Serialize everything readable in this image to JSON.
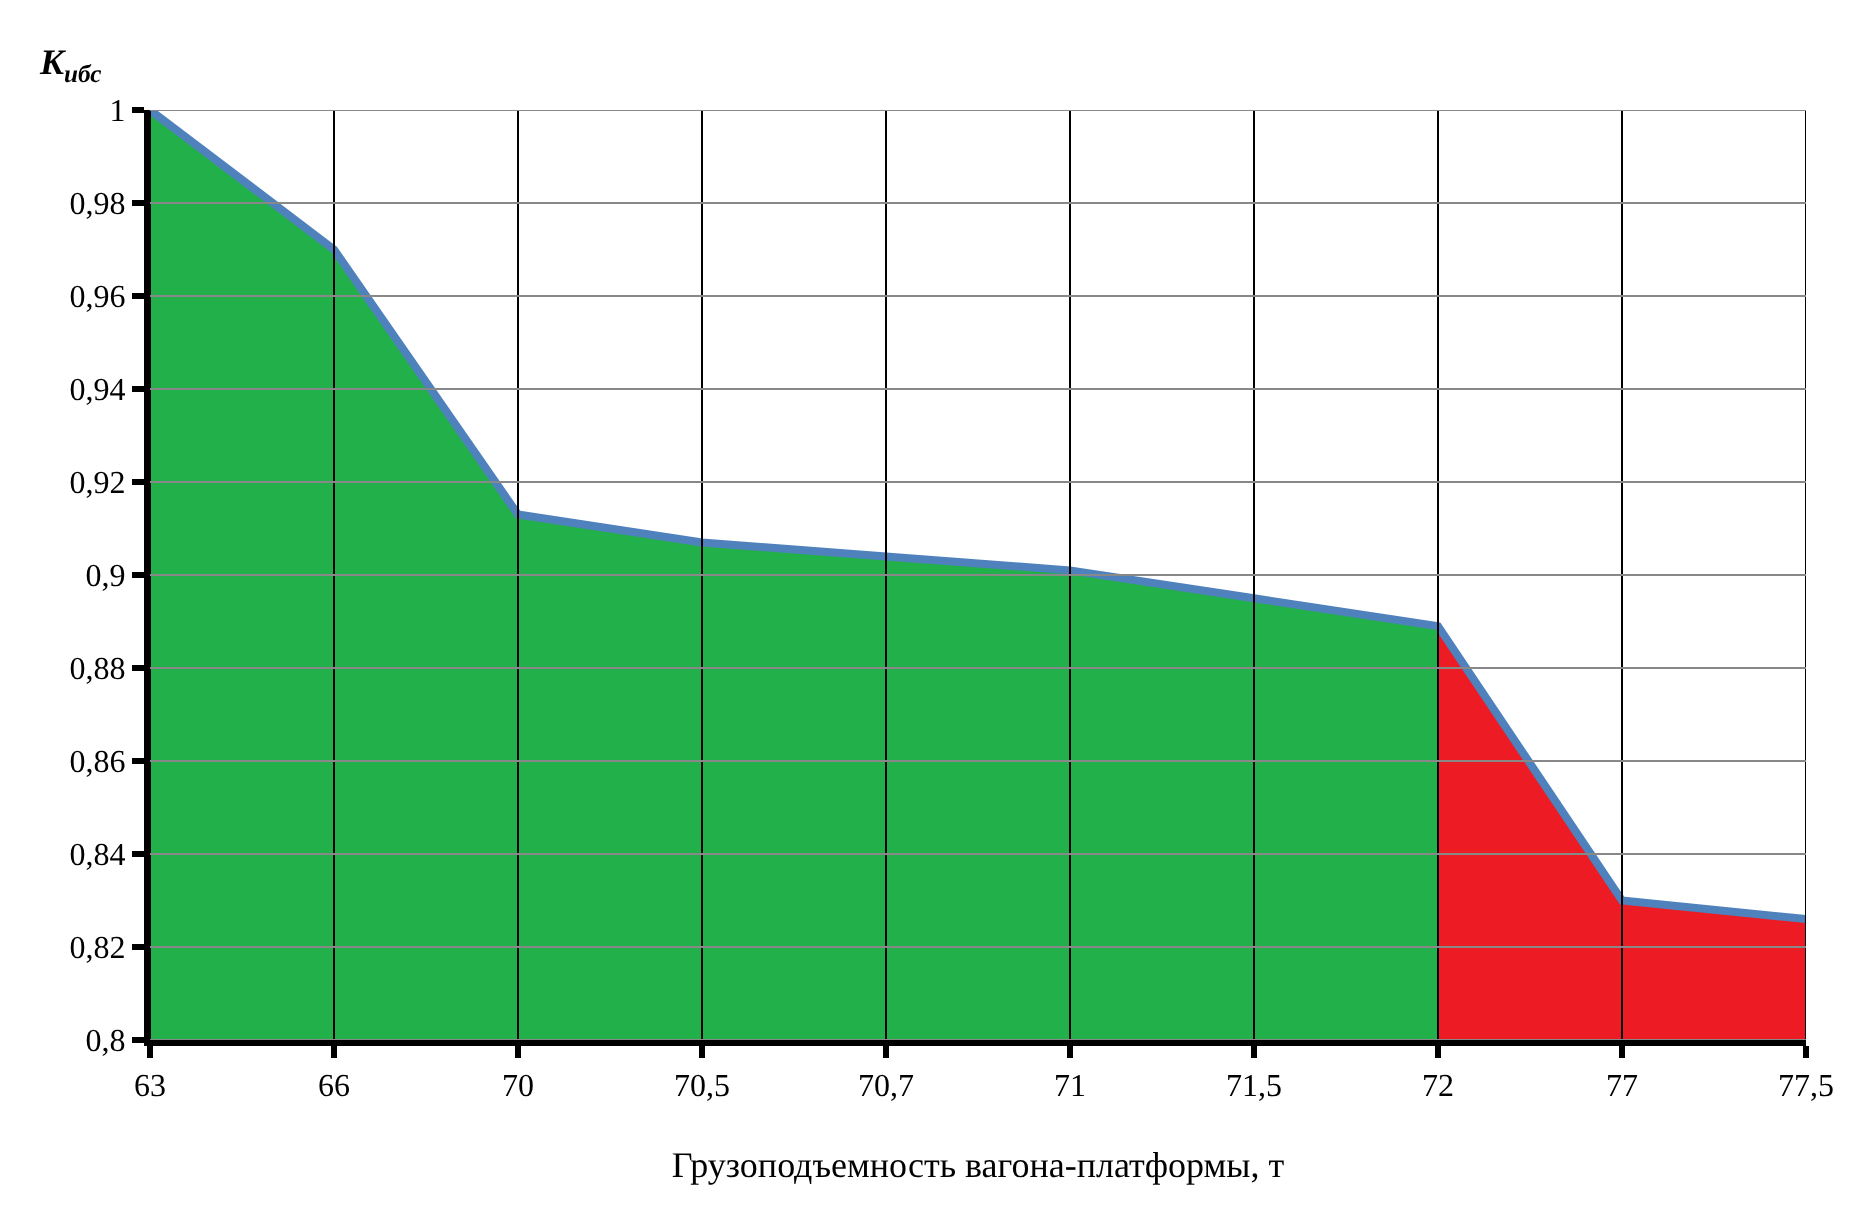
{
  "chart_data": {
    "type": "area",
    "ylabel": "K$_{ибс}$",
    "xlabel": "Грузоподъемность вагона-платформы, т",
    "categories": [
      "63",
      "66",
      "70",
      "70,5",
      "70,7",
      "71",
      "71,5",
      "72",
      "77",
      "77,5"
    ],
    "series": [
      {
        "color": "#22b04b",
        "values": [
          1.0,
          0.97,
          0.913,
          0.907,
          0.904,
          0.901,
          0.895,
          0.889,
          null,
          null
        ]
      },
      {
        "color": "#ed1c24",
        "values": [
          null,
          null,
          null,
          null,
          null,
          null,
          null,
          0.889,
          0.83,
          0.826
        ]
      },
      {
        "type": "line",
        "color": "#4f81bd",
        "values": [
          1.0,
          0.97,
          0.913,
          0.907,
          0.904,
          0.901,
          0.895,
          0.889,
          0.83,
          0.826
        ]
      }
    ],
    "ylim": [
      0.8,
      1.0
    ],
    "yticks": [
      {
        "value": 0.8,
        "label": "0,8"
      },
      {
        "value": 0.82,
        "label": "0,82"
      },
      {
        "value": 0.84,
        "label": "0,84"
      },
      {
        "value": 0.86,
        "label": "0,86"
      },
      {
        "value": 0.88,
        "label": "0,88"
      },
      {
        "value": 0.9,
        "label": "0,9"
      },
      {
        "value": 0.92,
        "label": "0,92"
      },
      {
        "value": 0.94,
        "label": "0,94"
      },
      {
        "value": 0.96,
        "label": "0,96"
      },
      {
        "value": 0.98,
        "label": "0,98"
      },
      {
        "value": 1.0,
        "label": "1"
      }
    ],
    "grid": true
  }
}
